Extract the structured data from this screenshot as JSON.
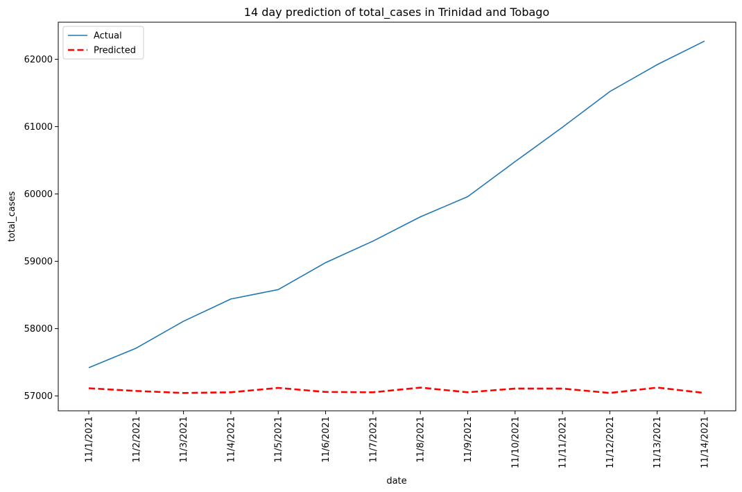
{
  "chart_data": {
    "type": "line",
    "title": "14 day prediction of total_cases in Trinidad and Tobago",
    "xlabel": "date",
    "ylabel": "total_cases",
    "x": [
      "11/1/2021",
      "11/2/2021",
      "11/3/2021",
      "11/4/2021",
      "11/5/2021",
      "11/6/2021",
      "11/7/2021",
      "11/8/2021",
      "11/9/2021",
      "11/10/2021",
      "11/11/2021",
      "11/12/2021",
      "11/13/2021",
      "11/14/2021"
    ],
    "ylim": [
      56780,
      62550
    ],
    "yticks": [
      57000,
      58000,
      59000,
      60000,
      61000,
      62000
    ],
    "grid": false,
    "legend_position": "top-left",
    "series": [
      {
        "name": "Actual",
        "color": "#1f77b4",
        "style": "solid",
        "values": [
          57420,
          57710,
          58110,
          58440,
          58580,
          58980,
          59300,
          59660,
          59960,
          60480,
          60990,
          61520,
          61920,
          62270
        ]
      },
      {
        "name": "Predicted",
        "color": "#ff0000",
        "style": "dashed",
        "values": [
          57115,
          57075,
          57045,
          57055,
          57120,
          57060,
          57055,
          57125,
          57055,
          57110,
          57110,
          57045,
          57125,
          57045
        ]
      }
    ]
  }
}
